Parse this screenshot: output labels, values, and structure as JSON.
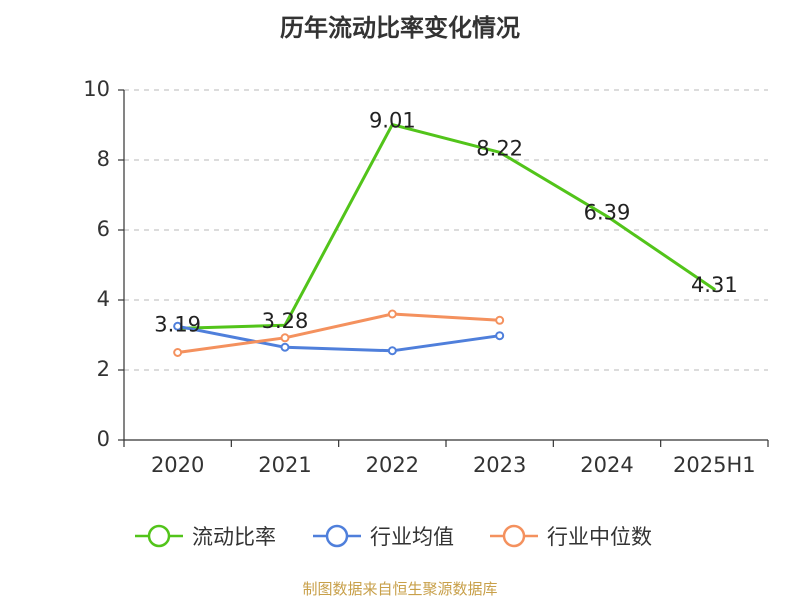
{
  "title": "历年流动比率变化情况",
  "source_text": "制图数据来自恒生聚源数据库",
  "chart_data": {
    "type": "line",
    "categories": [
      "2020",
      "2021",
      "2022",
      "2023",
      "2024",
      "2025H1"
    ],
    "ylim": [
      0,
      10
    ],
    "yticks": [
      0,
      2,
      4,
      6,
      8,
      10
    ],
    "ytick_labels": [
      "0",
      "2",
      "4",
      "6",
      "8",
      "10"
    ],
    "grid": true,
    "legend_position": "bottom",
    "series": [
      {
        "name": "流动比率",
        "color": "#52c41a",
        "values": [
          3.19,
          3.28,
          9.01,
          8.22,
          6.39,
          4.31
        ],
        "labels": [
          "3.19",
          "3.28",
          "9.01",
          "8.22",
          "6.39",
          "4.31"
        ],
        "show_markers": false
      },
      {
        "name": "行业均值",
        "color": "#4f7fdb",
        "values": [
          3.25,
          2.65,
          2.55,
          2.98,
          null,
          null
        ],
        "show_markers": true
      },
      {
        "name": "行业中位数",
        "color": "#f4915e",
        "values": [
          2.5,
          2.92,
          3.6,
          3.42,
          null,
          null
        ],
        "show_markers": true
      }
    ]
  }
}
